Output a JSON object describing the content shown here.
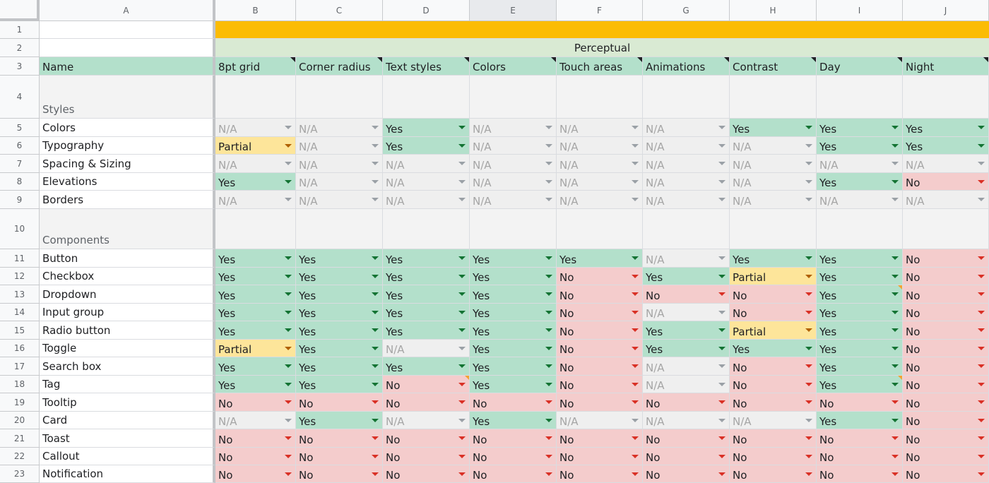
{
  "columns": [
    "A",
    "B",
    "C",
    "D",
    "E",
    "F",
    "G",
    "H",
    "I",
    "J"
  ],
  "selected_column": "E",
  "rows": [
    "1",
    "2",
    "3",
    "4",
    "5",
    "6",
    "7",
    "8",
    "9",
    "10",
    "11",
    "12",
    "13",
    "14",
    "15",
    "16",
    "17",
    "18",
    "19",
    "20",
    "21",
    "22",
    "23"
  ],
  "group_header": "Perceptual",
  "header_name": "Name",
  "criteria": [
    "8pt grid",
    "Corner radius",
    "Text styles",
    "Colors",
    "Touch areas",
    "Animations",
    "Contrast",
    "Day",
    "Night"
  ],
  "sections": {
    "styles": "Styles",
    "components": "Components"
  },
  "styles": [
    {
      "name": "Colors",
      "values": [
        "N/A",
        "N/A",
        "Yes",
        "N/A",
        "N/A",
        "N/A",
        "Yes",
        "Yes",
        "Yes"
      ]
    },
    {
      "name": "Typography",
      "values": [
        "Partial",
        "N/A",
        "Yes",
        "N/A",
        "N/A",
        "N/A",
        "N/A",
        "Yes",
        "Yes"
      ]
    },
    {
      "name": "Spacing & Sizing",
      "values": [
        "N/A",
        "N/A",
        "N/A",
        "N/A",
        "N/A",
        "N/A",
        "N/A",
        "N/A",
        "N/A"
      ]
    },
    {
      "name": "Elevations",
      "values": [
        "Yes",
        "N/A",
        "N/A",
        "N/A",
        "N/A",
        "N/A",
        "N/A",
        "Yes",
        "No"
      ]
    },
    {
      "name": "Borders",
      "values": [
        "N/A",
        "N/A",
        "N/A",
        "N/A",
        "N/A",
        "N/A",
        "N/A",
        "N/A",
        "N/A"
      ]
    }
  ],
  "components": [
    {
      "name": "Button",
      "values": [
        "Yes",
        "Yes",
        "Yes",
        "Yes",
        "Yes",
        "N/A",
        "Yes",
        "Yes",
        "No"
      ]
    },
    {
      "name": "Checkbox",
      "values": [
        "Yes",
        "Yes",
        "Yes",
        "Yes",
        "No",
        "Yes",
        "Partial",
        "Yes",
        "No"
      ]
    },
    {
      "name": "Dropdown",
      "values": [
        "Yes",
        "Yes",
        "Yes",
        "Yes",
        "No",
        "No",
        "No",
        "Yes",
        "No"
      ]
    },
    {
      "name": "Input group",
      "values": [
        "Yes",
        "Yes",
        "Yes",
        "Yes",
        "No",
        "N/A",
        "No",
        "Yes",
        "No"
      ]
    },
    {
      "name": "Radio button",
      "values": [
        "Yes",
        "Yes",
        "Yes",
        "Yes",
        "No",
        "Yes",
        "Partial",
        "Yes",
        "No"
      ]
    },
    {
      "name": "Toggle",
      "values": [
        "Partial",
        "Yes",
        "N/A",
        "Yes",
        "No",
        "Yes",
        "Yes",
        "Yes",
        "No"
      ]
    },
    {
      "name": "Search box",
      "values": [
        "Yes",
        "Yes",
        "Yes",
        "Yes",
        "No",
        "N/A",
        "No",
        "Yes",
        "No"
      ]
    },
    {
      "name": "Tag",
      "values": [
        "Yes",
        "Yes",
        "No",
        "Yes",
        "No",
        "N/A",
        "No",
        "Yes",
        "No"
      ]
    },
    {
      "name": "Tooltip",
      "values": [
        "No",
        "No",
        "No",
        "No",
        "No",
        "No",
        "No",
        "No",
        "No"
      ]
    },
    {
      "name": "Card",
      "values": [
        "N/A",
        "Yes",
        "N/A",
        "Yes",
        "N/A",
        "N/A",
        "N/A",
        "Yes",
        "No"
      ]
    },
    {
      "name": "Toast",
      "values": [
        "No",
        "No",
        "No",
        "No",
        "No",
        "No",
        "No",
        "No",
        "No"
      ]
    },
    {
      "name": "Callout",
      "values": [
        "No",
        "No",
        "No",
        "No",
        "No",
        "No",
        "No",
        "No",
        "No"
      ]
    },
    {
      "name": "Notification",
      "values": [
        "No",
        "No",
        "No",
        "No",
        "No",
        "No",
        "No",
        "No",
        "No"
      ]
    }
  ],
  "status_colors": {
    "Yes": "#b3e0cb",
    "No": "#f4cccc",
    "Partial": "#fde59a",
    "N/A": "#efefef"
  }
}
